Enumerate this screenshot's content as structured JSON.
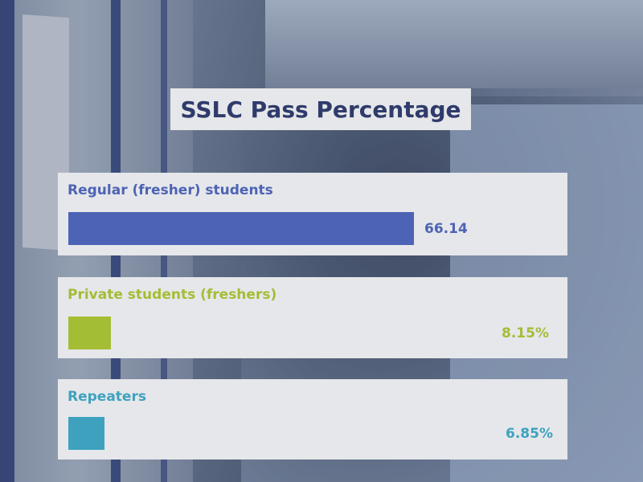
{
  "chart_data": {
    "type": "bar",
    "orientation": "horizontal",
    "title": "SSLC Pass Percentage",
    "categories": [
      "Regular (fresher) students",
      "Private students (freshers)",
      "Repeaters"
    ],
    "values": [
      66.14,
      8.15,
      6.85
    ],
    "value_labels": [
      "66.14",
      "8.15%",
      "6.85%"
    ],
    "colors": [
      "#4d63b5",
      "#a3bd35",
      "#3ea2bf"
    ],
    "xlim": [
      0,
      100
    ]
  }
}
